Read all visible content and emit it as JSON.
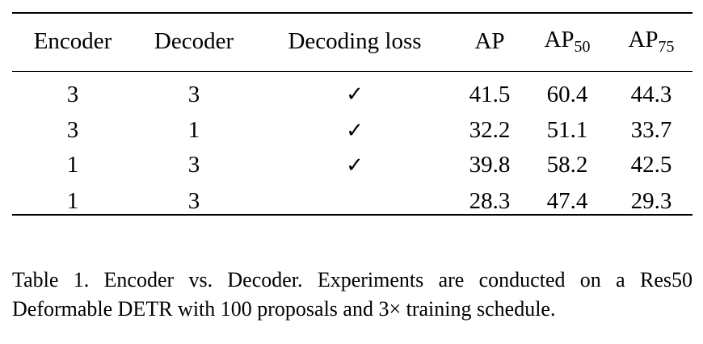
{
  "table": {
    "headers": {
      "encoder": "Encoder",
      "decoder": "Decoder",
      "decoding_loss": "Decoding loss",
      "ap": "AP",
      "ap50_base": "AP",
      "ap50_sub": "50",
      "ap75_base": "AP",
      "ap75_sub": "75"
    },
    "rows": [
      {
        "encoder": "3",
        "decoder": "3",
        "decoding_loss": "✓",
        "ap": "41.5",
        "ap50": "60.4",
        "ap75": "44.3"
      },
      {
        "encoder": "3",
        "decoder": "1",
        "decoding_loss": "✓",
        "ap": "32.2",
        "ap50": "51.1",
        "ap75": "33.7"
      },
      {
        "encoder": "1",
        "decoder": "3",
        "decoding_loss": "✓",
        "ap": "39.8",
        "ap50": "58.2",
        "ap75": "42.5"
      },
      {
        "encoder": "1",
        "decoder": "3",
        "decoding_loss": "",
        "ap": "28.3",
        "ap50": "47.4",
        "ap75": "29.3"
      }
    ]
  },
  "caption": {
    "text": "Table 1. Encoder vs.  Decoder.  Experiments are conducted on a Res50 Deformable DETR with 100 proposals and 3× training schedule."
  }
}
